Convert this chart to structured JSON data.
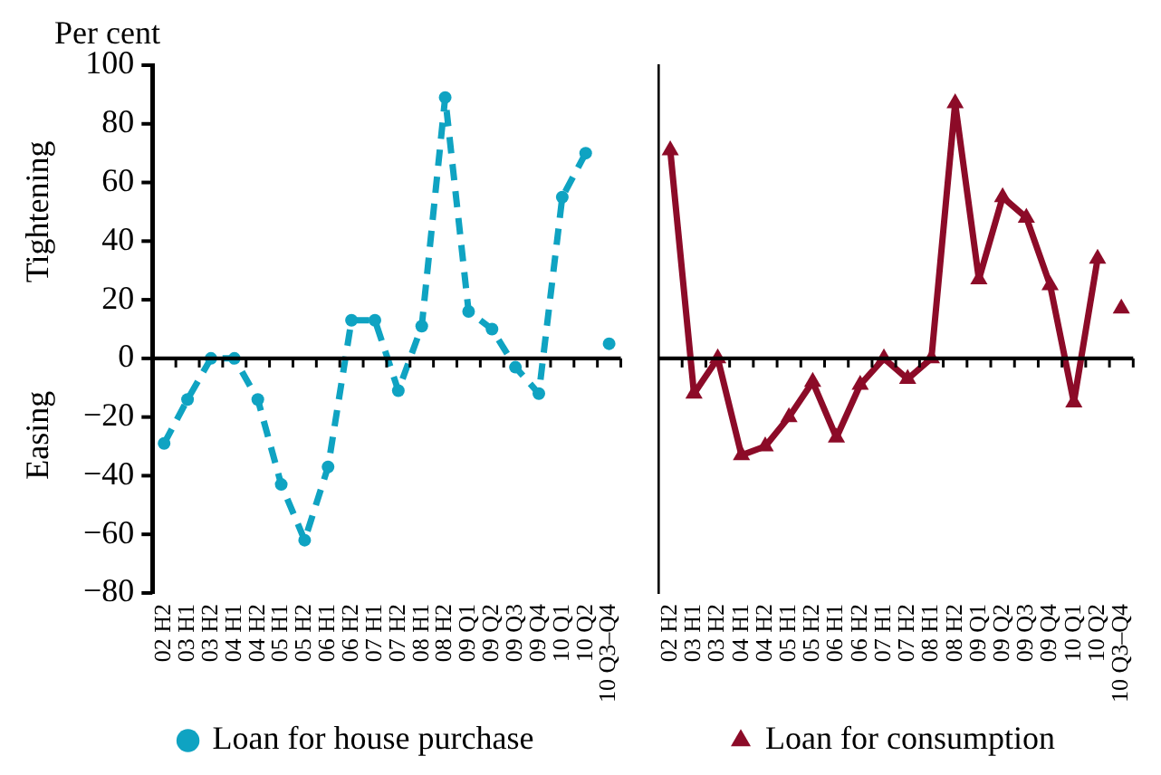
{
  "chart_data": [
    {
      "type": "line",
      "ylabel": "Per cent",
      "annotations": [
        "Tightening",
        "Easing"
      ],
      "categories": [
        "02 H2",
        "03 H1",
        "03 H2",
        "04 H1",
        "04 H2",
        "05 H1",
        "05 H2",
        "06 H1",
        "06 H2",
        "07 H1",
        "07 H2",
        "08 H1",
        "08 H2",
        "09 Q1",
        "09 Q2",
        "09 Q3",
        "09 Q4",
        "10 Q1",
        "10 Q2",
        "10 Q3–Q4"
      ],
      "series": [
        {
          "name": "Loan for house purchase",
          "color": "#0fa3c2",
          "marker": "circle",
          "line_style": "dashed",
          "values": [
            -29,
            -14,
            0,
            0,
            -14,
            -43,
            -62,
            -37,
            13,
            13,
            -11,
            11,
            89,
            16,
            10,
            -3,
            -12,
            55,
            70,
            null
          ]
        },
        {
          "type": "scatter",
          "color": "#0fa3c2",
          "marker": "circle",
          "values": [
            null,
            null,
            null,
            null,
            null,
            null,
            null,
            null,
            null,
            null,
            null,
            null,
            null,
            null,
            null,
            null,
            null,
            null,
            null,
            5
          ]
        }
      ],
      "ylim": [
        -80,
        100
      ],
      "yticks": [
        {
          "value": -80,
          "label": "−80"
        },
        {
          "value": -60,
          "label": "−60"
        },
        {
          "value": -40,
          "label": "−40"
        },
        {
          "value": -20,
          "label": "−20"
        },
        0,
        20,
        40,
        60,
        80,
        100
      ],
      "ref_lines": [
        {
          "axis": "y",
          "value": 0,
          "color": "#000000"
        }
      ],
      "grid": false,
      "legend": "bottom"
    },
    {
      "type": "line",
      "categories": [
        "02 H2",
        "03 H1",
        "03 H2",
        "04 H1",
        "04 H2",
        "05 H1",
        "05 H2",
        "06 H1",
        "06 H2",
        "07 H1",
        "07 H2",
        "08 H1",
        "08 H2",
        "09 Q1",
        "09 Q2",
        "09 Q3",
        "09 Q4",
        "10 Q1",
        "10 Q2",
        "10 Q3–Q4"
      ],
      "series": [
        {
          "name": "Loan for consumption",
          "color": "#8c0b28",
          "marker": "triangle",
          "line_style": "solid",
          "values": [
            71,
            -12,
            0,
            -33,
            -30,
            -20,
            -8,
            -27,
            -9,
            0,
            -7,
            0,
            87,
            27,
            55,
            48,
            25,
            -15,
            34,
            null
          ]
        },
        {
          "type": "scatter",
          "color": "#8c0b28",
          "marker": "triangle",
          "values": [
            null,
            null,
            null,
            null,
            null,
            null,
            null,
            null,
            null,
            null,
            null,
            null,
            null,
            null,
            null,
            null,
            null,
            null,
            null,
            17
          ]
        }
      ],
      "ylim": [
        -80,
        100
      ],
      "ref_lines": [
        {
          "axis": "y",
          "value": 0,
          "color": "#000000"
        }
      ],
      "tick_labels": "x",
      "grid": false,
      "legend": "bottom"
    }
  ]
}
